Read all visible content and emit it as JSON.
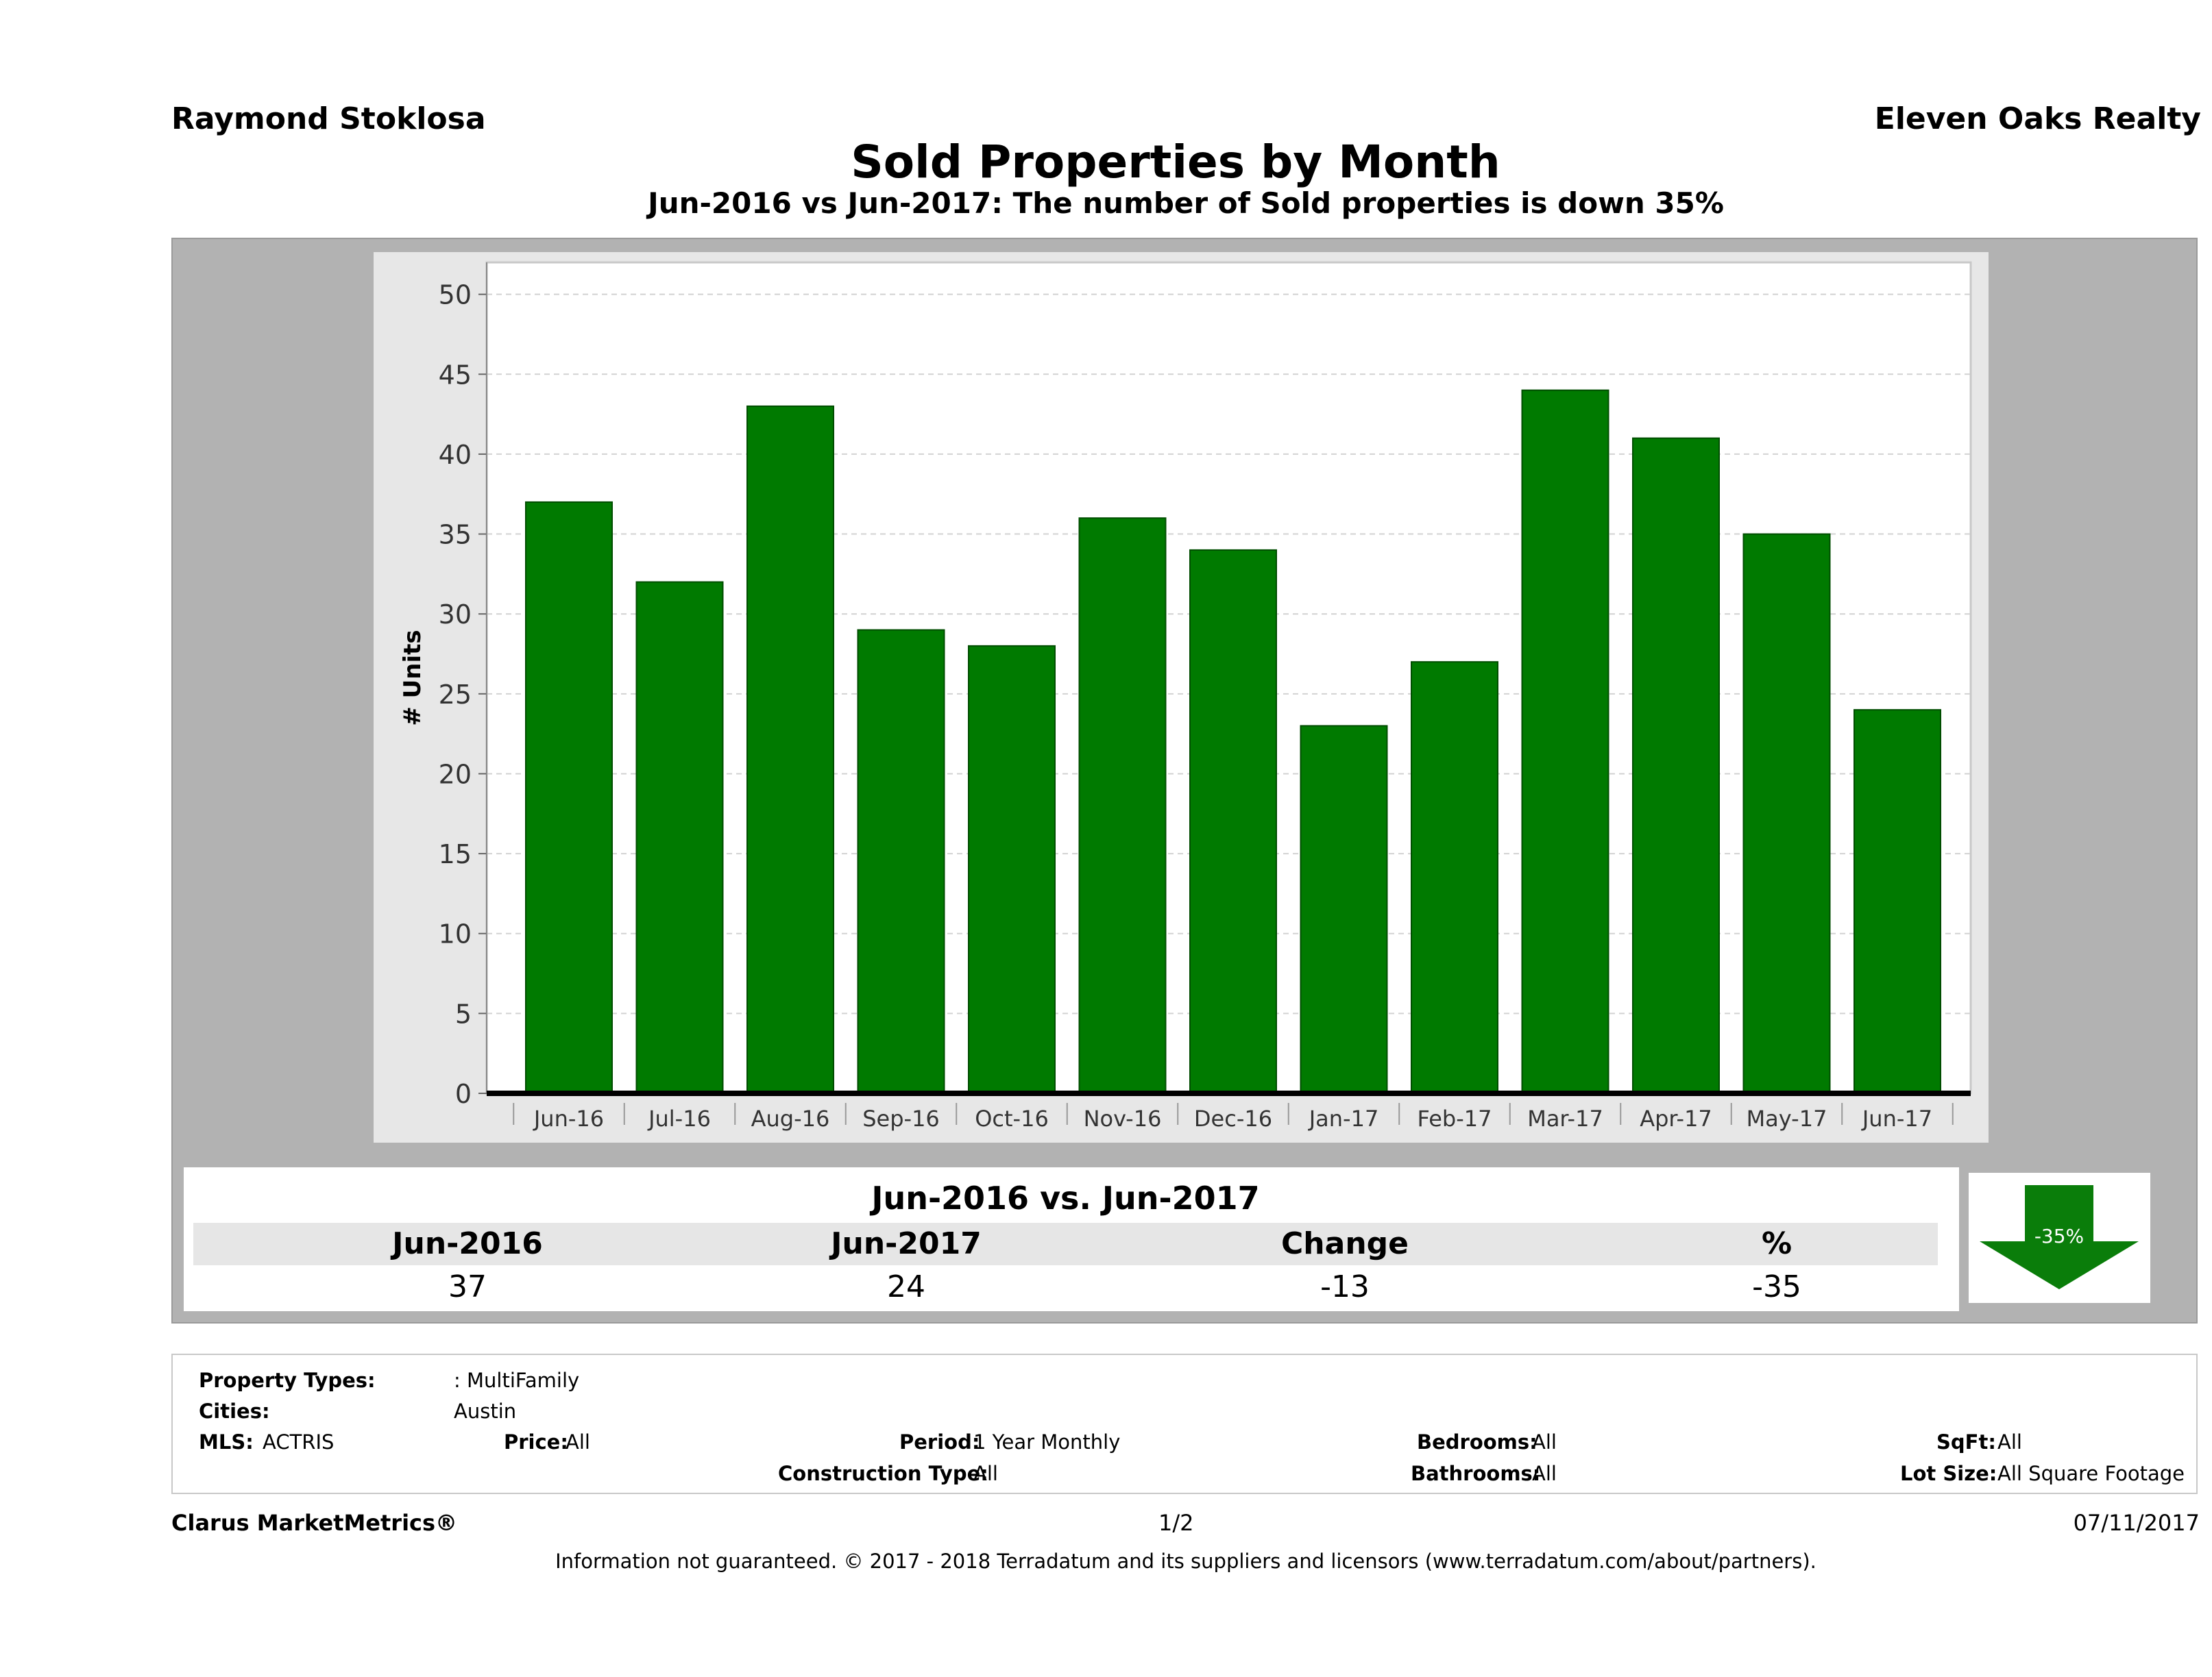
{
  "header": {
    "agent_name": "Raymond Stoklosa",
    "brokerage": "Eleven Oaks Realty",
    "title": "Sold Properties by Month",
    "subtitle": "Jun-2016 vs Jun-2017: The number of Sold  properties is down 35%"
  },
  "chart_data": {
    "type": "bar",
    "title": "Sold Properties by Month",
    "ylabel": "# Units",
    "xlabel": "",
    "ylim": [
      0,
      52
    ],
    "yticks": [
      0,
      5,
      10,
      15,
      20,
      25,
      30,
      35,
      40,
      45,
      50
    ],
    "grid": true,
    "bar_color": "#007a00",
    "categories": [
      "Jun-16",
      "Jul-16",
      "Aug-16",
      "Sep-16",
      "Oct-16",
      "Nov-16",
      "Dec-16",
      "Jan-17",
      "Feb-17",
      "Mar-17",
      "Apr-17",
      "May-17",
      "Jun-17"
    ],
    "values": [
      37,
      32,
      43,
      29,
      28,
      36,
      34,
      23,
      27,
      44,
      41,
      35,
      24
    ]
  },
  "summary": {
    "title": "Jun-2016 vs. Jun-2017",
    "headers": [
      "Jun-2016",
      "Jun-2017",
      "Change",
      "%"
    ],
    "values": [
      "37",
      "24",
      "-13",
      "-35"
    ],
    "badge": "-35%",
    "badge_color": "#0a7d0a"
  },
  "filters": {
    "property_types_label": "Property Types:",
    "property_types_value": ": MultiFamily",
    "cities_label": "Cities:",
    "cities_value": "Austin",
    "mls_label": "MLS:",
    "mls_value": "ACTRIS",
    "price_label": "Price:",
    "price_value": "All",
    "period_label": "Period:",
    "period_value": "1 Year Monthly",
    "construction_label": "Construction Type:",
    "construction_value": "All",
    "bedrooms_label": "Bedrooms:",
    "bedrooms_value": "All",
    "bathrooms_label": "Bathrooms:",
    "bathrooms_value": "All",
    "sqft_label": "SqFt:",
    "sqft_value": "All",
    "lotsize_label": "Lot Size:",
    "lotsize_value": "All Square Footage"
  },
  "footer": {
    "product": "Clarus MarketMetrics®",
    "page": "1/2",
    "date": "07/11/2017",
    "disclaimer": "Information not guaranteed. © 2017 - 2018 Terradatum and its suppliers and licensors (www.terradatum.com/about/partners)."
  }
}
